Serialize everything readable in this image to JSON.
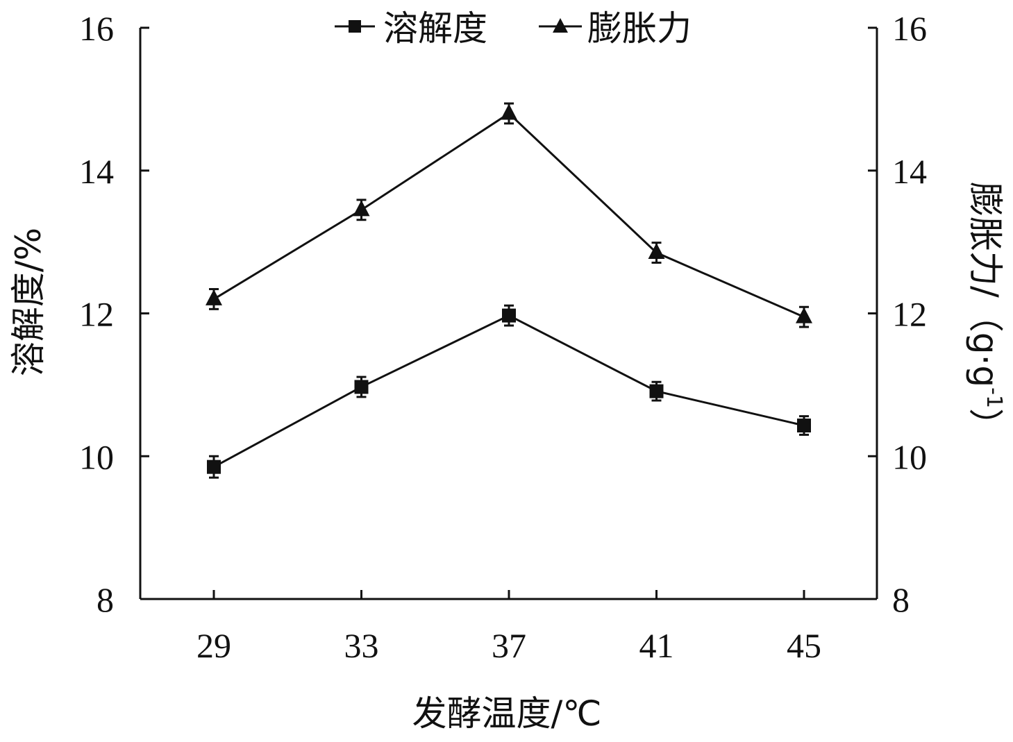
{
  "chart_data": {
    "type": "line",
    "categories": [
      "29",
      "33",
      "37",
      "41",
      "45"
    ],
    "xlabel": "发酵温度/℃",
    "ylabel_left": "溶解度/%",
    "ylabel_right": "膨胀力/（g·g",
    "ylabel_right_sup": "-1",
    "ylabel_right_close": "）",
    "ylim": [
      8,
      16
    ],
    "y_ticks": [
      "8",
      "10",
      "12",
      "14",
      "16"
    ],
    "grid": false,
    "legend_position": "top-center",
    "series": [
      {
        "name": "溶解度",
        "marker": "square",
        "axis": "left",
        "values": [
          9.85,
          10.97,
          11.97,
          10.91,
          10.43
        ],
        "errors": [
          0.15,
          0.14,
          0.14,
          0.13,
          0.13
        ]
      },
      {
        "name": "膨胀力",
        "marker": "triangle",
        "axis": "right",
        "values": [
          12.2,
          13.45,
          14.8,
          12.85,
          11.95
        ],
        "errors": [
          0.14,
          0.14,
          0.14,
          0.14,
          0.14
        ]
      }
    ],
    "colors": {
      "line": "#111111",
      "axis": "#111111"
    }
  }
}
